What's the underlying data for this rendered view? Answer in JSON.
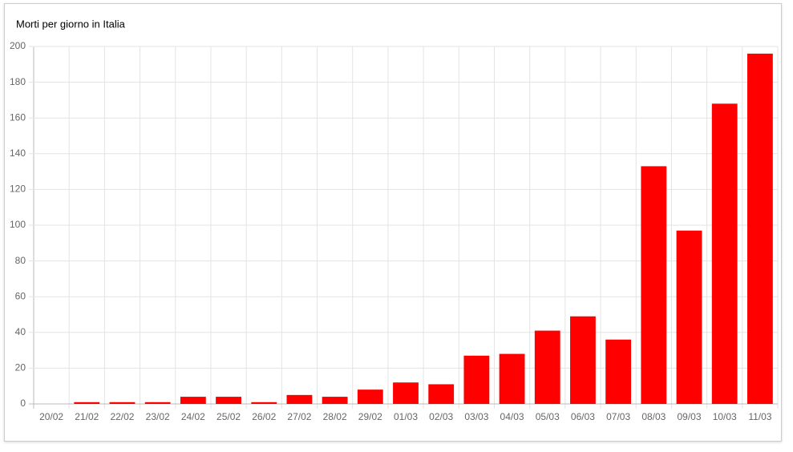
{
  "chart_data": {
    "type": "bar",
    "title": "Morti per giorno in Italia",
    "categories": [
      "20/02",
      "21/02",
      "22/02",
      "23/02",
      "24/02",
      "25/02",
      "26/02",
      "27/02",
      "28/02",
      "29/02",
      "01/03",
      "02/03",
      "03/03",
      "04/03",
      "05/03",
      "06/03",
      "07/03",
      "08/03",
      "09/03",
      "10/03",
      "11/03"
    ],
    "values": [
      0,
      1,
      1,
      1,
      4,
      4,
      1,
      5,
      4,
      8,
      12,
      11,
      27,
      28,
      41,
      49,
      36,
      133,
      97,
      168,
      196
    ],
    "color": "#ff0000",
    "ylim": [
      0,
      200
    ],
    "yticks": [
      0,
      20,
      40,
      60,
      80,
      100,
      120,
      140,
      160,
      180,
      200
    ],
    "grid": true
  }
}
